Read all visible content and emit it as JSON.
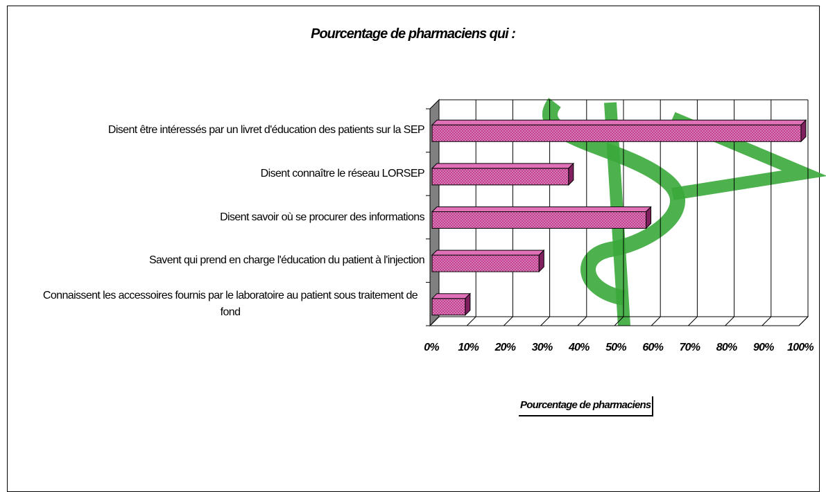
{
  "chart_data": {
    "type": "bar",
    "orientation": "horizontal",
    "title": "Pourcentage de pharmaciens qui :",
    "x_label": "Pourcentage de pharmaciens",
    "categories": [
      "Disent être intéressés par un livret d'éducation des patients sur la SEP",
      "Disent connaître le réseau LORSEP",
      "Disent savoir où se procurer des informations",
      "Savent qui prend en charge l'éducation du patient à l'injection",
      "Connaissent les accessoires fournis par le laboratoire au patient sous traitement de fond"
    ],
    "values": [
      100,
      37,
      58,
      29,
      9
    ],
    "color": "#c0408f",
    "xlim": [
      0,
      100
    ],
    "xticks": [
      {
        "value": 0,
        "label": "0%"
      },
      {
        "value": 10,
        "label": "10%"
      },
      {
        "value": 20,
        "label": "20%"
      },
      {
        "value": 30,
        "label": "30%"
      },
      {
        "value": 40,
        "label": "40%"
      },
      {
        "value": 50,
        "label": "50%"
      },
      {
        "value": 60,
        "label": "60%"
      },
      {
        "value": 70,
        "label": "70%"
      },
      {
        "value": 80,
        "label": "80%"
      },
      {
        "value": 90,
        "label": "90%"
      },
      {
        "value": 100,
        "label": "100%"
      }
    ],
    "grid": true
  }
}
